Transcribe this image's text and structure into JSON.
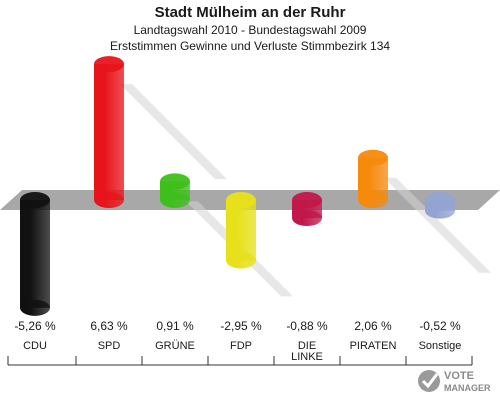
{
  "chart_data": {
    "type": "bar",
    "title": "Stadt Mülheim an der Ruhr",
    "subtitle_1": "Landtagswahl 2010 - Bundestagswahl 2009",
    "subtitle_2": "Erststimmen Gewinne und Verluste Stimmbezirk 134",
    "categories": [
      "CDU",
      "SPD",
      "GRÜNE",
      "FDP",
      "DIE LINKE",
      "PIRATEN",
      "Sonstige"
    ],
    "category_labels": [
      [
        "CDU"
      ],
      [
        "SPD"
      ],
      [
        "GRÜNE"
      ],
      [
        "FDP"
      ],
      [
        "DIE",
        "LINKE"
      ],
      [
        "PIRATEN"
      ],
      [
        "Sonstige"
      ]
    ],
    "values": [
      -5.26,
      6.63,
      0.91,
      -2.95,
      -0.88,
      2.06,
      -0.52
    ],
    "value_labels": [
      "-5,26 %",
      "6,63 %",
      "0,91 %",
      "-2,95 %",
      "-0,88 %",
      "2,06 %",
      "-0,52 %"
    ],
    "colors": [
      "#111111",
      "#e8141b",
      "#3fbf1b",
      "#e8e01a",
      "#c0184a",
      "#f58a0c",
      "#94a4d2"
    ],
    "zero_axis_color": "#a8a8a8",
    "shadow_color": "#d4d4d4"
  },
  "watermark": {
    "text": "VOTE MANAGER",
    "icon": "vote-manager-logo-icon"
  }
}
